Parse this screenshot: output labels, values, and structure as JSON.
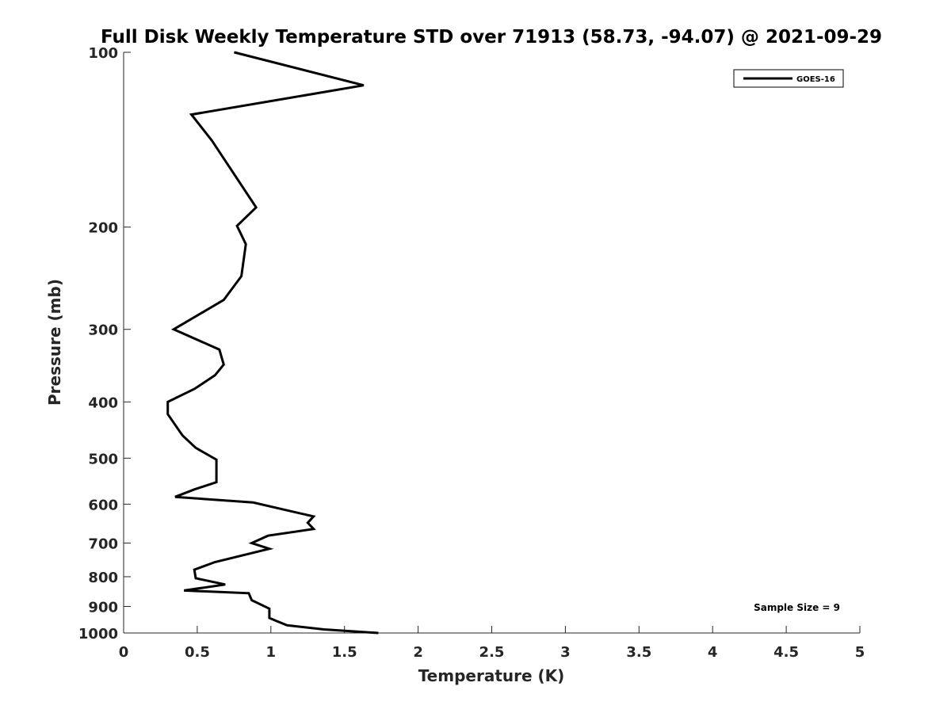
{
  "chart_data": {
    "type": "line",
    "title": "Full Disk Weekly Temperature STD over 71913 (58.73, -94.07) @ 2021-09-29",
    "xlabel": "Temperature (K)",
    "ylabel": "Pressure (mb)",
    "xlim": [
      0,
      5
    ],
    "ylim": [
      100,
      1000
    ],
    "y_scale": "log",
    "y_reversed": true,
    "grid": false,
    "x_ticks": [
      "0",
      "0.5",
      "1",
      "1.5",
      "2",
      "2.5",
      "3",
      "3.5",
      "4",
      "4.5",
      "5"
    ],
    "y_ticks": [
      "100",
      "200",
      "300",
      "400",
      "500",
      "600",
      "700",
      "800",
      "900",
      "1000"
    ],
    "legend_position": "top-right",
    "annotation": "Sample Size = 9",
    "series": [
      {
        "name": "GOES-16",
        "color": "#000000",
        "x": [
          0.75,
          1.63,
          0.46,
          0.6,
          0.9,
          0.77,
          0.83,
          0.8,
          0.68,
          0.34,
          0.65,
          0.68,
          0.62,
          0.48,
          0.3,
          0.3,
          0.4,
          0.49,
          0.63,
          0.63,
          0.48,
          0.35,
          0.88,
          1.29,
          1.25,
          1.29,
          0.98,
          0.87,
          0.99,
          0.62,
          0.48,
          0.49,
          0.69,
          0.41,
          0.85,
          0.87,
          0.99,
          0.99,
          1.03,
          1.11,
          1.36,
          1.73
        ],
        "y": [
          100,
          114,
          128,
          142,
          185,
          199,
          214,
          243,
          267,
          300,
          325,
          345,
          360,
          380,
          400,
          420,
          457,
          480,
          503,
          550,
          566,
          583,
          596,
          630,
          646,
          662,
          680,
          700,
          716,
          755,
          778,
          805,
          825,
          845,
          854,
          878,
          908,
          942,
          952,
          970,
          986,
          1000
        ]
      }
    ]
  }
}
